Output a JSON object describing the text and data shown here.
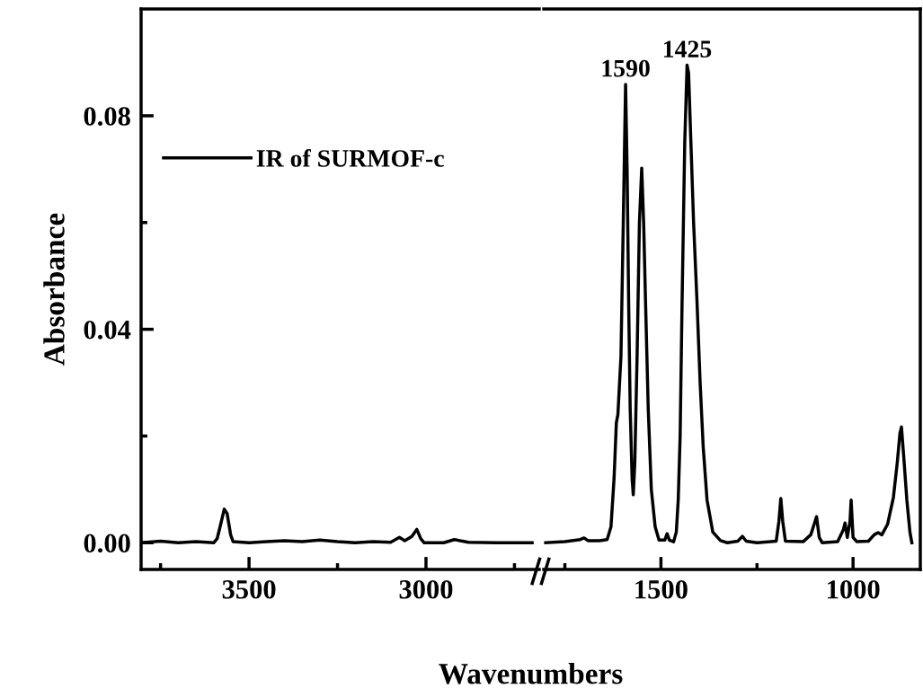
{
  "chart_data": [
    {
      "type": "line",
      "ylabel": "Absorbance",
      "xlabel": "Wavenumbers",
      "legend": "top left",
      "line_style": "solid",
      "xlim": [
        3805,
        2680
      ],
      "xticks": [
        {
          "value": 3750,
          "label": null
        },
        3500,
        {
          "value": 3250,
          "label": null
        },
        3000,
        {
          "value": 2750,
          "label": null
        }
      ],
      "ylim": [
        -0.005,
        0.1
      ],
      "yticks": [
        {
          "value": 0,
          "label": "0.00"
        },
        {
          "value": 0.02,
          "label": null
        },
        {
          "value": 0.04,
          "label": "0.04"
        },
        {
          "value": 0.06,
          "label": null
        },
        {
          "value": 0.08,
          "label": "0.08"
        }
      ],
      "series": [
        {
          "name": "IR of SURMOF-c",
          "color": "#000000",
          "x": [
            3805,
            3750,
            3700,
            3650,
            3600,
            3590,
            3580,
            3570,
            3562,
            3552,
            3545,
            3500,
            3450,
            3400,
            3350,
            3300,
            3250,
            3200,
            3150,
            3100,
            3075,
            3060,
            3040,
            3026,
            3015,
            3005,
            2950,
            2920,
            2880,
            2800,
            2750,
            2700
          ],
          "values": [
            0.0,
            0.0003,
            0.0,
            0.0002,
            0.0,
            0.0008,
            0.0035,
            0.0063,
            0.0055,
            0.0015,
            0.0002,
            0.0,
            0.0002,
            0.0004,
            0.0002,
            0.0005,
            0.0002,
            0.0,
            0.0002,
            0.0001,
            0.001,
            0.0004,
            0.0012,
            0.0025,
            0.0008,
            0.0,
            0.0,
            0.0006,
            0.0001,
            0.0,
            0.0,
            0.0
          ]
        }
      ]
    },
    {
      "type": "line",
      "tick_labels": "x",
      "line_style": "solid",
      "xlim": [
        1805,
        825
      ],
      "xticks": [
        {
          "value": 1750,
          "label": null
        },
        1500,
        {
          "value": 1250,
          "label": null
        },
        1000
      ],
      "ylim": [
        -0.005,
        0.1
      ],
      "annotations": [
        {
          "text": "1590",
          "x": 1592,
          "y": 0.0859
        },
        {
          "text": "1425",
          "x": 1432,
          "y": 0.0895
        }
      ],
      "series": [
        {
          "color": "#000000",
          "x": [
            1800,
            1750,
            1710,
            1700,
            1690,
            1660,
            1640,
            1630,
            1622,
            1616,
            1612,
            1604,
            1598,
            1592,
            1588,
            1584,
            1580,
            1575,
            1572,
            1568,
            1562,
            1556,
            1550,
            1545,
            1540,
            1533,
            1525,
            1515,
            1505,
            1490,
            1484,
            1478,
            1467,
            1460,
            1455,
            1450,
            1445,
            1438,
            1432,
            1428,
            1422,
            1415,
            1406,
            1398,
            1390,
            1380,
            1365,
            1345,
            1327,
            1300,
            1288,
            1278,
            1250,
            1200,
            1193,
            1188,
            1183,
            1176,
            1130,
            1110,
            1095,
            1088,
            1080,
            1040,
            1025,
            1021,
            1015,
            1008,
            1005,
            1000,
            990,
            960,
            945,
            935,
            925,
            910,
            895,
            885,
            878,
            874,
            868,
            860,
            852,
            847
          ],
          "values": [
            0.0,
            0.0002,
            0.0006,
            0.0009,
            0.0004,
            0.0004,
            0.0006,
            0.003,
            0.012,
            0.0225,
            0.024,
            0.035,
            0.06,
            0.0859,
            0.07,
            0.045,
            0.025,
            0.012,
            0.009,
            0.015,
            0.035,
            0.06,
            0.0702,
            0.06,
            0.045,
            0.025,
            0.01,
            0.003,
            0.0005,
            0.0005,
            0.0017,
            0.0005,
            0.0002,
            0.002,
            0.008,
            0.02,
            0.045,
            0.075,
            0.0895,
            0.088,
            0.075,
            0.06,
            0.045,
            0.03,
            0.018,
            0.008,
            0.002,
            0.0004,
            0.0,
            0.0003,
            0.0012,
            0.0003,
            0.0,
            0.0003,
            0.004,
            0.0083,
            0.004,
            0.0003,
            0.0002,
            0.0015,
            0.0049,
            0.001,
            0.0,
            0.0002,
            0.0025,
            0.0037,
            0.001,
            0.004,
            0.008,
            0.001,
            0.0002,
            0.0003,
            0.0015,
            0.0019,
            0.0015,
            0.0035,
            0.0085,
            0.015,
            0.0205,
            0.0217,
            0.016,
            0.008,
            0.002,
            0.0
          ]
        }
      ]
    }
  ]
}
